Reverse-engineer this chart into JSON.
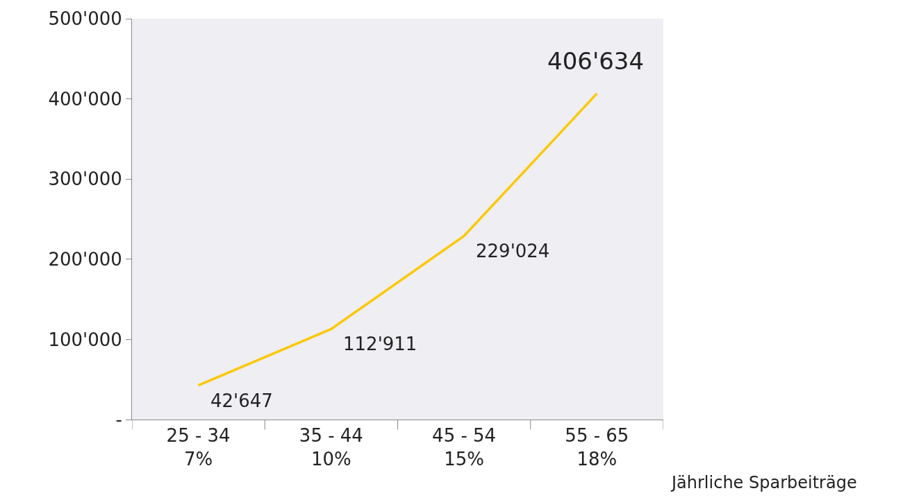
{
  "chart_data": {
    "type": "line",
    "categories": [
      "25 - 34\n7%",
      "35 - 44\n10%",
      "45 - 54\n15%",
      "55 - 65\n18%"
    ],
    "series": [
      {
        "color": "#fcc800",
        "values": [
          42647,
          112911,
          229024,
          406634
        ],
        "value_labels": [
          "42'647",
          "112'911",
          "229'024",
          "406'634"
        ]
      }
    ],
    "xlabel": "Jährliche Sparbeiträge",
    "ylim": [
      0,
      500000
    ],
    "yticks": [
      {
        "value": 0,
        "label": "-"
      },
      {
        "value": 100000,
        "label": "100'000"
      },
      {
        "value": 200000,
        "label": "200'000"
      },
      {
        "value": 300000,
        "label": "300'000"
      },
      {
        "value": 400000,
        "label": "400'000"
      },
      {
        "value": 500000,
        "label": "500'000"
      }
    ],
    "grid": false,
    "marker": "none",
    "line_style": "solid"
  }
}
